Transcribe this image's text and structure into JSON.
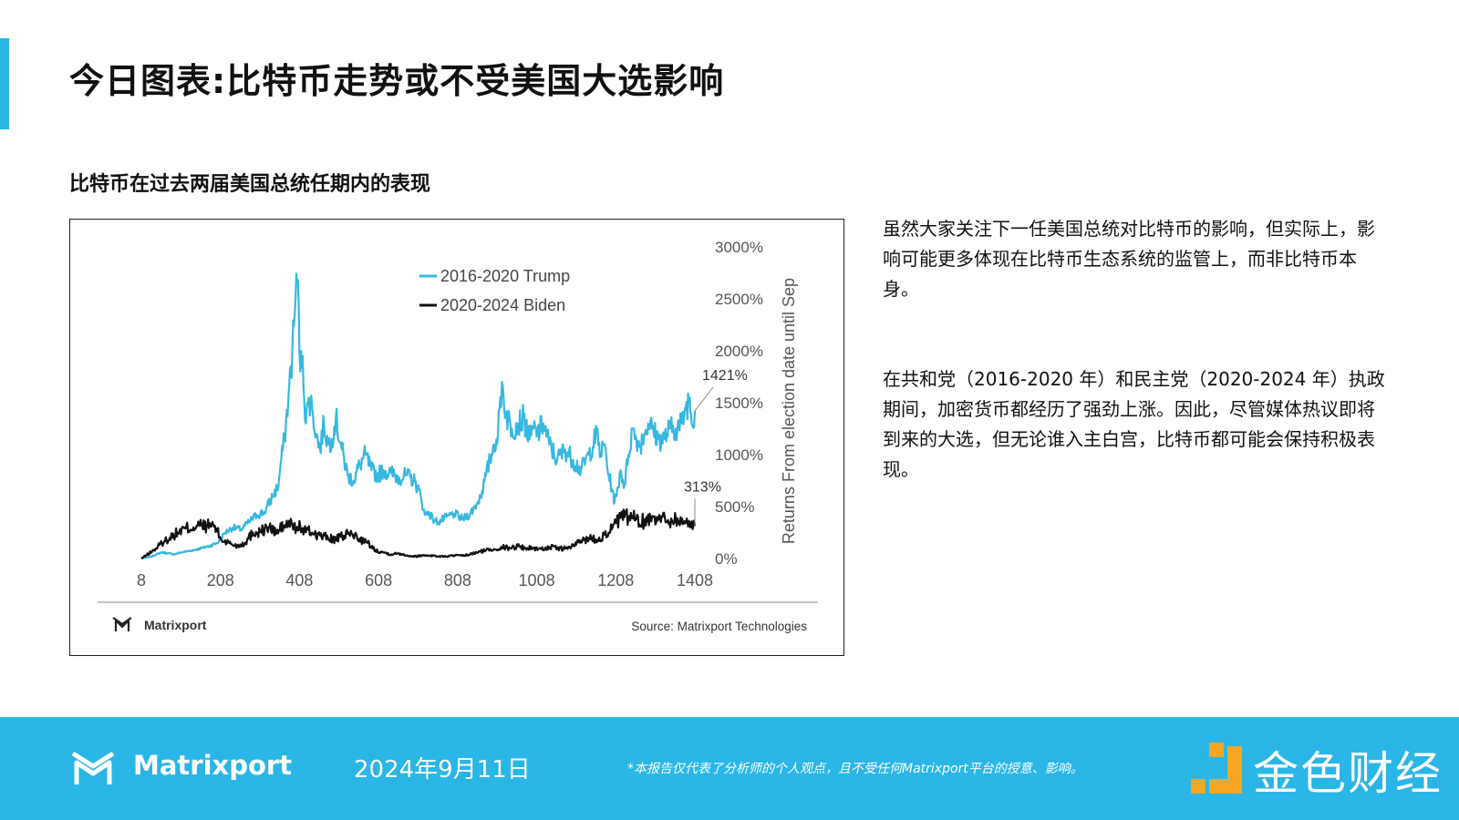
{
  "colors": {
    "accent": "#29b6e6",
    "trump_line": "#35b8e0",
    "biden_line": "#111111",
    "footer_bg": "#29b6e6",
    "watermark": "#f5a623"
  },
  "page": {
    "title": "今日图表:比特币走势或不受美国大选影响",
    "section_title": "比特币在过去两届美国总统任期内的表现"
  },
  "commentary": {
    "para1": "虽然大家关注下一任美国总统对比特币的影响，但实际上，影响可能更多体现在比特币生态系统的监管上，而非比特币本身。",
    "para2": "在共和党（2016-2020 年）和民主党（2020-2024 年）执政期间，加密货币都经历了强劲上涨。因此，尽管媒体热议即将到来的大选，但无论谁入主白宫，比特币都可能会保持积极表现。"
  },
  "chart_footer": {
    "logo_text": "Matrixport",
    "source": "Source: Matrixport Technologies"
  },
  "footer": {
    "brand": "Matrixport",
    "date": "2024年9月11日",
    "disclaimer": "*本报告仅代表了分析师的个人观点，且不受任何Matrixport平台的授意、影响。",
    "watermark": "金色财经"
  },
  "chart_data": {
    "type": "line",
    "title": "",
    "xlabel": "",
    "ylabel": "Returns From election date until Sep",
    "xlim": [
      8,
      1408
    ],
    "ylim": [
      0,
      3000
    ],
    "x_ticks": [
      8,
      208,
      408,
      608,
      808,
      1008,
      1208,
      1408
    ],
    "y_ticks": [
      0,
      500,
      1000,
      1500,
      2000,
      2500,
      3000
    ],
    "y_tick_labels": [
      "0%",
      "500%",
      "1000%",
      "1500%",
      "2000%",
      "2500%",
      "3000%"
    ],
    "y_axis_side": "right",
    "grid": false,
    "legend": "top-center",
    "annotations": [
      {
        "text": "1421%",
        "series": "2016-2020 Trump",
        "x": 1408,
        "y": 1421
      },
      {
        "text": "313%",
        "series": "2020-2024 Biden",
        "x": 1408,
        "y": 313
      }
    ],
    "series": [
      {
        "name": "2016-2020 Trump",
        "x": [
          8,
          30,
          60,
          90,
          110,
          140,
          160,
          180,
          200,
          220,
          240,
          260,
          280,
          300,
          320,
          340,
          355,
          360,
          370,
          380,
          390,
          398,
          402,
          406,
          410,
          416,
          424,
          432,
          440,
          450,
          460,
          470,
          480,
          490,
          500,
          515,
          530,
          545,
          560,
          575,
          590,
          605,
          620,
          640,
          660,
          680,
          700,
          715,
          725,
          735,
          745,
          760,
          780,
          800,
          820,
          840,
          860,
          870,
          880,
          890,
          900,
          910,
          920,
          930,
          945,
          960,
          975,
          990,
          1000,
          1010,
          1025,
          1040,
          1060,
          1080,
          1100,
          1120,
          1140,
          1160,
          1170,
          1180,
          1190,
          1200,
          1205,
          1210,
          1220,
          1230,
          1240,
          1250,
          1260,
          1270,
          1280,
          1290,
          1300,
          1315,
          1330,
          1345,
          1360,
          1375,
          1385,
          1395,
          1400,
          1408
        ],
        "y": [
          0,
          15,
          60,
          40,
          60,
          80,
          100,
          120,
          150,
          250,
          300,
          280,
          350,
          420,
          450,
          600,
          700,
          900,
          1150,
          1550,
          2000,
          2500,
          2650,
          2450,
          1800,
          1950,
          1300,
          1550,
          1450,
          1200,
          1050,
          1300,
          1100,
          1150,
          1350,
          1050,
          800,
          750,
          900,
          1000,
          850,
          800,
          850,
          820,
          780,
          800,
          740,
          600,
          420,
          450,
          380,
          350,
          400,
          430,
          380,
          430,
          550,
          650,
          800,
          950,
          1100,
          1200,
          1700,
          1400,
          1250,
          1300,
          1350,
          1150,
          1250,
          1200,
          1300,
          1100,
          950,
          1050,
          950,
          850,
          1000,
          1200,
          1000,
          1100,
          800,
          650,
          550,
          600,
          850,
          700,
          1000,
          1250,
          1150,
          1100,
          1200,
          1300,
          1250,
          1150,
          1150,
          1250,
          1250,
          1300,
          1450,
          1550,
          1300,
          1421
        ]
      },
      {
        "name": "2020-2024 Biden",
        "x": [
          8,
          20,
          40,
          60,
          80,
          100,
          120,
          140,
          160,
          175,
          190,
          200,
          210,
          230,
          250,
          270,
          290,
          310,
          330,
          350,
          370,
          390,
          400,
          410,
          420,
          440,
          460,
          480,
          500,
          520,
          540,
          560,
          580,
          600,
          620,
          640,
          660,
          680,
          700,
          720,
          740,
          760,
          780,
          800,
          820,
          840,
          860,
          880,
          900,
          920,
          940,
          960,
          980,
          1000,
          1020,
          1040,
          1060,
          1080,
          1100,
          1120,
          1140,
          1160,
          1180,
          1190,
          1200,
          1210,
          1220,
          1240,
          1260,
          1280,
          1300,
          1320,
          1340,
          1360,
          1380,
          1395,
          1408
        ],
        "y": [
          0,
          30,
          80,
          150,
          200,
          250,
          290,
          300,
          320,
          310,
          330,
          260,
          180,
          150,
          120,
          150,
          250,
          260,
          300,
          250,
          320,
          330,
          280,
          310,
          270,
          250,
          220,
          200,
          180,
          220,
          240,
          190,
          150,
          80,
          60,
          40,
          50,
          30,
          20,
          30,
          30,
          20,
          20,
          30,
          25,
          40,
          60,
          80,
          90,
          110,
          100,
          120,
          100,
          100,
          90,
          110,
          100,
          95,
          120,
          170,
          200,
          180,
          230,
          250,
          300,
          340,
          390,
          400,
          380,
          350,
          410,
          390,
          370,
          380,
          340,
          350,
          313
        ]
      }
    ]
  }
}
